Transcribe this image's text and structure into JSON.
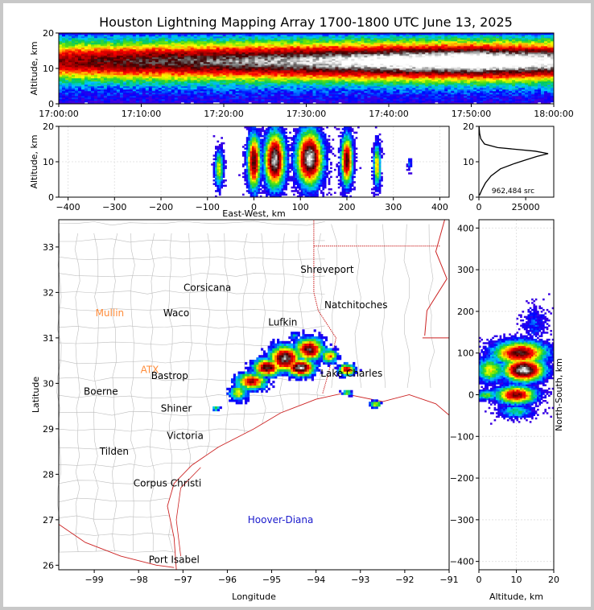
{
  "title": "Houston Lightning Mapping Array 1700-1800 UTC June 13, 2025",
  "colors": {
    "background": "#ffffff",
    "frame": "#c8c8c8",
    "state_border": "#cc2222",
    "county_line": "#bdbdbd",
    "coastline": "#cc2222",
    "city_text": "#000000",
    "radar_site_text": "#ff8c3a",
    "offshore_text": "#1a1acc"
  },
  "chart_data": [
    {
      "type": "heatmap",
      "panel": "altitude-time",
      "xlabel": "",
      "ylabel": "Altitude, km",
      "x_ticks": [
        "17:00:00",
        "17:10:00",
        "17:20:00",
        "17:30:00",
        "17:40:00",
        "17:50:00",
        "18:00:00"
      ],
      "x_range": [
        "17:00:00",
        "18:00:00"
      ],
      "y_ticks": [
        0,
        10,
        20
      ],
      "ylim": [
        0,
        20
      ],
      "core_altitude_km": 12,
      "core_spread_km": 3.5,
      "intensity_by_time": [
        {
          "time": "17:00:00",
          "intensity": 0.55
        },
        {
          "time": "17:10:00",
          "intensity": 0.65
        },
        {
          "time": "17:20:00",
          "intensity": 0.7
        },
        {
          "time": "17:30:00",
          "intensity": 0.78
        },
        {
          "time": "17:40:00",
          "intensity": 0.88
        },
        {
          "time": "17:50:00",
          "intensity": 0.96
        },
        {
          "time": "18:00:00",
          "intensity": 0.85
        }
      ]
    },
    {
      "type": "heatmap",
      "panel": "east-west-altitude",
      "xlabel": "East-West, km",
      "ylabel": "Altitude, km",
      "x_ticks": [
        -400,
        -300,
        -200,
        -100,
        0,
        100,
        200,
        300,
        400
      ],
      "xlim": [
        -420,
        420
      ],
      "y_ticks": [
        0,
        10,
        20
      ],
      "ylim": [
        0,
        20
      ],
      "clusters": [
        {
          "x": -75,
          "alt": 8,
          "sx": 6,
          "salt": 3.5,
          "peak": 0.45
        },
        {
          "x": 0,
          "alt": 10,
          "sx": 9,
          "salt": 5,
          "peak": 0.82
        },
        {
          "x": 45,
          "alt": 10.5,
          "sx": 14,
          "salt": 5,
          "peak": 0.95
        },
        {
          "x": 120,
          "alt": 11,
          "sx": 18,
          "salt": 5,
          "peak": 0.97
        },
        {
          "x": 200,
          "alt": 10.5,
          "sx": 8,
          "salt": 4.5,
          "peak": 0.8
        },
        {
          "x": 265,
          "alt": 9,
          "sx": 5,
          "salt": 4,
          "peak": 0.5
        },
        {
          "x": 335,
          "alt": 9.5,
          "sx": 3,
          "salt": 1,
          "peak": 0.2
        }
      ]
    },
    {
      "type": "line",
      "panel": "altitude-histogram",
      "xlabel": "",
      "ylabel": "",
      "x_ticks": [
        0,
        25000
      ],
      "xlim": [
        0,
        40000
      ],
      "y_ticks": [
        0,
        10,
        20
      ],
      "ylim": [
        0,
        20
      ],
      "annotation": "962,484 src",
      "points": [
        {
          "alt": 0.5,
          "count": 300
        },
        {
          "alt": 2,
          "count": 1500
        },
        {
          "alt": 4,
          "count": 3500
        },
        {
          "alt": 6,
          "count": 6500
        },
        {
          "alt": 8,
          "count": 11500
        },
        {
          "alt": 9.5,
          "count": 19000
        },
        {
          "alt": 10.5,
          "count": 25000
        },
        {
          "alt": 11.5,
          "count": 31000
        },
        {
          "alt": 12.3,
          "count": 37000
        },
        {
          "alt": 13,
          "count": 30000
        },
        {
          "alt": 14,
          "count": 10000
        },
        {
          "alt": 15,
          "count": 3000
        },
        {
          "alt": 16.5,
          "count": 1000
        },
        {
          "alt": 18,
          "count": 400
        },
        {
          "alt": 20,
          "count": 100
        }
      ]
    },
    {
      "type": "heatmap",
      "panel": "plan-view-map",
      "xlabel": "Longitude",
      "ylabel": "Latitude",
      "x_ticks": [
        -99,
        -98,
        -97,
        -96,
        -95,
        -94,
        -93,
        -92,
        -91
      ],
      "xlim": [
        -99.8,
        -91
      ],
      "y_ticks": [
        26,
        27,
        28,
        29,
        30,
        31,
        32,
        33
      ],
      "ylim": [
        25.9,
        33.6
      ],
      "clusters": [
        {
          "lon": -95.75,
          "lat": 29.8,
          "slon": 0.14,
          "slat": 0.12,
          "peak": 0.45
        },
        {
          "lon": -95.45,
          "lat": 30.05,
          "slon": 0.22,
          "slat": 0.12,
          "peak": 0.7
        },
        {
          "lon": -95.1,
          "lat": 30.35,
          "slon": 0.2,
          "slat": 0.12,
          "peak": 0.85
        },
        {
          "lon": -94.7,
          "lat": 30.55,
          "slon": 0.22,
          "slat": 0.18,
          "peak": 0.9
        },
        {
          "lon": -94.35,
          "lat": 30.35,
          "slon": 0.2,
          "slat": 0.12,
          "peak": 0.93
        },
        {
          "lon": -94.15,
          "lat": 30.75,
          "slon": 0.2,
          "slat": 0.16,
          "peak": 0.82
        },
        {
          "lon": -93.3,
          "lat": 30.3,
          "slon": 0.12,
          "slat": 0.08,
          "peak": 0.72
        },
        {
          "lon": -93.7,
          "lat": 30.6,
          "slon": 0.12,
          "slat": 0.1,
          "peak": 0.55
        },
        {
          "lon": -92.65,
          "lat": 29.55,
          "slon": 0.08,
          "slat": 0.05,
          "peak": 0.5
        },
        {
          "lon": -93.3,
          "lat": 29.8,
          "slon": 0.08,
          "slat": 0.04,
          "peak": 0.4
        },
        {
          "lon": -96.25,
          "lat": 29.45,
          "slon": 0.06,
          "slat": 0.04,
          "peak": 0.3
        },
        {
          "lon": -94.5,
          "lat": 31.05,
          "slon": 0.05,
          "slat": 0.05,
          "peak": 0.25
        }
      ],
      "cities": [
        {
          "name": "Shreveport",
          "lon": -93.75,
          "lat": 32.5,
          "kind": "city"
        },
        {
          "name": "Corsicana",
          "lon": -96.45,
          "lat": 32.1,
          "kind": "city"
        },
        {
          "name": "Mullin",
          "lon": -98.65,
          "lat": 31.55,
          "kind": "radar"
        },
        {
          "name": "Waco",
          "lon": -97.15,
          "lat": 31.55,
          "kind": "city"
        },
        {
          "name": "Natchitoches",
          "lon": -93.1,
          "lat": 31.72,
          "kind": "city"
        },
        {
          "name": "Lufkin",
          "lon": -94.75,
          "lat": 31.34,
          "kind": "city"
        },
        {
          "name": "Austin",
          "lon": -97.75,
          "lat": 30.3,
          "kind": "radar-site",
          "label": "ATX"
        },
        {
          "name": "Bastrop",
          "lon": -97.3,
          "lat": 30.17,
          "kind": "city",
          "label": "Bastrop"
        },
        {
          "name": "Lake Charles",
          "lon": -93.2,
          "lat": 30.22,
          "kind": "city"
        },
        {
          "name": "Boerne",
          "lon": -98.85,
          "lat": 29.82,
          "kind": "city"
        },
        {
          "name": "Shiner",
          "lon": -97.15,
          "lat": 29.45,
          "kind": "city"
        },
        {
          "name": "Victoria",
          "lon": -96.95,
          "lat": 28.85,
          "kind": "city"
        },
        {
          "name": "Tilden",
          "lon": -98.55,
          "lat": 28.5,
          "kind": "city"
        },
        {
          "name": "Corpus Christi",
          "lon": -97.35,
          "lat": 27.8,
          "kind": "city"
        },
        {
          "name": "Hoover-Diana",
          "lon": -94.8,
          "lat": 27.0,
          "kind": "offshore"
        },
        {
          "name": "Port Isabel",
          "lon": -97.2,
          "lat": 26.12,
          "kind": "city"
        }
      ]
    },
    {
      "type": "heatmap",
      "panel": "altitude-north-south",
      "xlabel": "Altitude, km",
      "ylabel": "North-South, km",
      "x_ticks": [
        0,
        10,
        20
      ],
      "xlim": [
        0,
        20
      ],
      "y_ticks": [
        -400,
        -300,
        -200,
        -100,
        0,
        100,
        200,
        300,
        400
      ],
      "ylim": [
        -420,
        420
      ],
      "clusters": [
        {
          "ns": 100,
          "alt": 11,
          "sns": 18,
          "salt": 4.5,
          "peak": 0.8
        },
        {
          "ns": 60,
          "alt": 12,
          "sns": 18,
          "salt": 3.5,
          "peak": 0.97
        },
        {
          "ns": 60,
          "alt": 3,
          "sns": 20,
          "salt": 2.5,
          "peak": 0.45
        },
        {
          "ns": 0,
          "alt": 10,
          "sns": 14,
          "salt": 3.5,
          "peak": 0.75
        },
        {
          "ns": 0,
          "alt": 2,
          "sns": 8,
          "salt": 2,
          "peak": 0.35
        },
        {
          "ns": -40,
          "alt": 10,
          "sns": 10,
          "salt": 3,
          "peak": 0.3
        },
        {
          "ns": 170,
          "alt": 15,
          "sns": 25,
          "salt": 2,
          "peak": 0.15
        }
      ]
    }
  ]
}
